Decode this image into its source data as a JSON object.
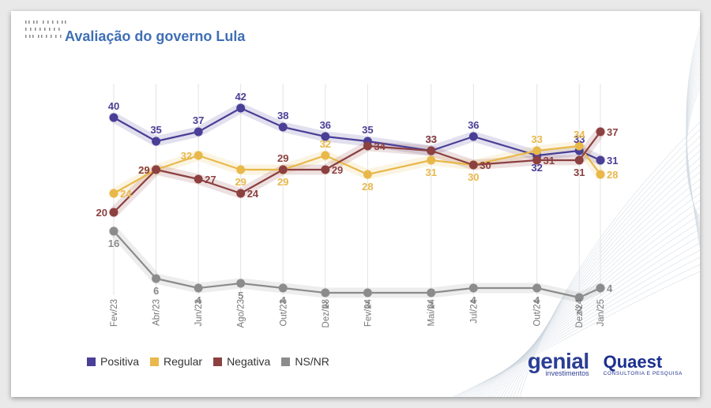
{
  "title": "Avaliação do governo Lula",
  "logos": {
    "genial": {
      "name": "genial",
      "sub": "investimentos"
    },
    "quaest": {
      "name": "Quaest",
      "sub": "CONSULTORIA E PESQUISA"
    }
  },
  "chart_data": {
    "type": "line",
    "x_index": [
      0,
      2,
      4,
      6,
      8,
      10,
      12,
      15,
      17,
      20,
      22,
      23
    ],
    "categories": [
      "Fev/23",
      "Abr/23",
      "Jun/23",
      "Ago/23",
      "Out/23",
      "Dez/23",
      "Fev/24",
      "Mai/24",
      "Jul/24",
      "Out/24",
      "Dez/24",
      "Jan/25"
    ],
    "ylim": [
      0,
      45
    ],
    "grid": "vertical",
    "legend_position": "bottom-left",
    "series": [
      {
        "name": "Positiva",
        "color": "#4a3f96",
        "values": [
          40,
          35,
          37,
          42,
          38,
          36,
          35,
          33,
          36,
          32,
          33,
          31
        ],
        "label_pos": [
          "above",
          "above",
          "above",
          "above",
          "above",
          "above",
          "above",
          "above",
          "above",
          "below",
          "above",
          "right"
        ]
      },
      {
        "name": "Regular",
        "color": "#e8b84a",
        "values": [
          24,
          29,
          32,
          29,
          29,
          32,
          28,
          31,
          30,
          33,
          34,
          28
        ],
        "label_pos": [
          "right",
          "left",
          "left",
          "below",
          "below",
          "above",
          "below",
          "below",
          "below",
          "above",
          "above",
          "right"
        ]
      },
      {
        "name": "Negativa",
        "color": "#8c4040",
        "values": [
          20,
          29,
          27,
          24,
          29,
          29,
          34,
          33,
          30,
          31,
          31,
          37
        ],
        "label_pos": [
          "left",
          "left",
          "right",
          "right",
          "above",
          "right",
          "right",
          "above",
          "right",
          "right",
          "below",
          "right"
        ]
      },
      {
        "name": "NS/NR",
        "color": "#8c8c8c",
        "values": [
          16,
          6,
          4,
          5,
          4,
          3,
          3,
          3,
          4,
          4,
          2,
          4
        ],
        "label_pos": [
          "below",
          "below",
          "below",
          "below",
          "below",
          "below",
          "below",
          "below",
          "below",
          "below",
          "below",
          "right"
        ]
      }
    ]
  }
}
